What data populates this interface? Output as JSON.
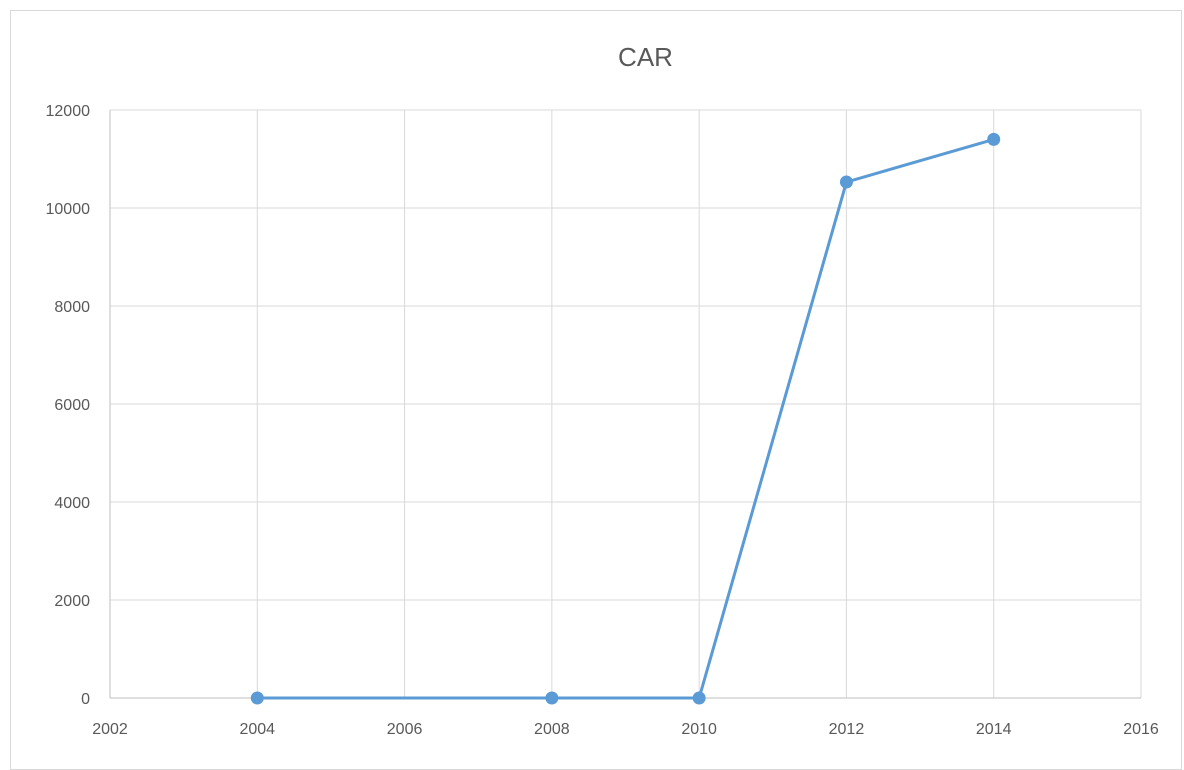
{
  "chart_data": {
    "type": "scatter",
    "title": "CAR",
    "xlabel": "",
    "ylabel": "",
    "xlim": [
      2002,
      2016
    ],
    "ylim": [
      0,
      12000
    ],
    "x_ticks": [
      2002,
      2004,
      2006,
      2008,
      2010,
      2012,
      2014,
      2016
    ],
    "y_ticks": [
      0,
      2000,
      4000,
      6000,
      8000,
      10000,
      12000
    ],
    "grid": true,
    "legend": "none",
    "series": [
      {
        "color": "#5b9bd5",
        "points": [
          {
            "x": 2004,
            "y": 0
          },
          {
            "x": 2008,
            "y": 0
          },
          {
            "x": 2010,
            "y": 0
          },
          {
            "x": 2012,
            "y": 10530
          },
          {
            "x": 2014,
            "y": 11400
          }
        ]
      }
    ]
  }
}
